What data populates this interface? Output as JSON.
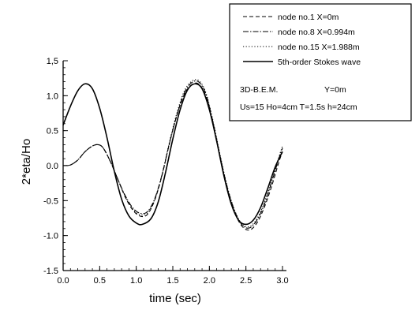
{
  "chart_data": {
    "type": "line",
    "xlabel": "time (sec)",
    "ylabel": "2*eta/Ho",
    "xlim": [
      0,
      3.0
    ],
    "ylim": [
      -1.5,
      1.5
    ],
    "x_ticks": [
      "0.0",
      "0.5",
      "1.0",
      "1.5",
      "2.0",
      "2.5",
      "3.0"
    ],
    "y_ticks": [
      "-1.5",
      "-1.0",
      "-0.5",
      "0.0",
      "0.5",
      "1.0",
      "1,5"
    ],
    "grid": false,
    "legend_position": "top-right",
    "series": [
      {
        "name": "node no.1  X=0m",
        "style": "dashed",
        "points": [
          [
            0,
            0
          ],
          [
            0.1,
            0.01
          ],
          [
            0.2,
            0.08
          ],
          [
            0.3,
            0.2
          ],
          [
            0.4,
            0.28
          ],
          [
            0.48,
            0.3
          ],
          [
            0.55,
            0.25
          ],
          [
            0.65,
            0.05
          ],
          [
            0.75,
            -0.2
          ],
          [
            0.85,
            -0.45
          ],
          [
            0.95,
            -0.63
          ],
          [
            1.05,
            -0.72
          ],
          [
            1.15,
            -0.7
          ],
          [
            1.25,
            -0.5
          ],
          [
            1.35,
            -0.15
          ],
          [
            1.45,
            0.3
          ],
          [
            1.55,
            0.7
          ],
          [
            1.65,
            1.0
          ],
          [
            1.75,
            1.15
          ],
          [
            1.85,
            1.17
          ],
          [
            1.95,
            1.0
          ],
          [
            2.05,
            0.6
          ],
          [
            2.15,
            0.1
          ],
          [
            2.25,
            -0.35
          ],
          [
            2.35,
            -0.68
          ],
          [
            2.45,
            -0.87
          ],
          [
            2.55,
            -0.92
          ],
          [
            2.65,
            -0.82
          ],
          [
            2.75,
            -0.6
          ],
          [
            2.85,
            -0.3
          ],
          [
            2.95,
            0.05
          ],
          [
            3.0,
            0.2
          ]
        ]
      },
      {
        "name": "node no.8  X=0.994m",
        "style": "dash-dot",
        "points": [
          [
            0,
            0
          ],
          [
            0.1,
            0.01
          ],
          [
            0.2,
            0.08
          ],
          [
            0.3,
            0.2
          ],
          [
            0.4,
            0.28
          ],
          [
            0.48,
            0.3
          ],
          [
            0.55,
            0.25
          ],
          [
            0.65,
            0.05
          ],
          [
            0.75,
            -0.2
          ],
          [
            0.85,
            -0.43
          ],
          [
            0.95,
            -0.6
          ],
          [
            1.05,
            -0.68
          ],
          [
            1.15,
            -0.66
          ],
          [
            1.25,
            -0.48
          ],
          [
            1.35,
            -0.14
          ],
          [
            1.45,
            0.3
          ],
          [
            1.55,
            0.7
          ],
          [
            1.65,
            1.02
          ],
          [
            1.75,
            1.18
          ],
          [
            1.85,
            1.2
          ],
          [
            1.95,
            1.03
          ],
          [
            2.05,
            0.62
          ],
          [
            2.15,
            0.12
          ],
          [
            2.25,
            -0.33
          ],
          [
            2.35,
            -0.66
          ],
          [
            2.45,
            -0.85
          ],
          [
            2.55,
            -0.89
          ],
          [
            2.65,
            -0.78
          ],
          [
            2.75,
            -0.56
          ],
          [
            2.85,
            -0.24
          ],
          [
            2.95,
            0.1
          ],
          [
            3.0,
            0.25
          ]
        ]
      },
      {
        "name": "node no.15  X=1.988m",
        "style": "dotted",
        "points": [
          [
            0,
            0
          ],
          [
            0.1,
            0.01
          ],
          [
            0.2,
            0.08
          ],
          [
            0.3,
            0.2
          ],
          [
            0.4,
            0.28
          ],
          [
            0.48,
            0.3
          ],
          [
            0.55,
            0.25
          ],
          [
            0.65,
            0.05
          ],
          [
            0.75,
            -0.2
          ],
          [
            0.85,
            -0.44
          ],
          [
            0.95,
            -0.62
          ],
          [
            1.05,
            -0.7
          ],
          [
            1.15,
            -0.68
          ],
          [
            1.25,
            -0.49
          ],
          [
            1.35,
            -0.14
          ],
          [
            1.45,
            0.32
          ],
          [
            1.55,
            0.73
          ],
          [
            1.65,
            1.05
          ],
          [
            1.75,
            1.2
          ],
          [
            1.85,
            1.22
          ],
          [
            1.95,
            1.05
          ],
          [
            2.05,
            0.64
          ],
          [
            2.15,
            0.14
          ],
          [
            2.25,
            -0.32
          ],
          [
            2.35,
            -0.65
          ],
          [
            2.45,
            -0.84
          ],
          [
            2.55,
            -0.87
          ],
          [
            2.65,
            -0.76
          ],
          [
            2.75,
            -0.53
          ],
          [
            2.85,
            -0.22
          ],
          [
            2.95,
            0.12
          ],
          [
            3.0,
            0.28
          ]
        ]
      },
      {
        "name": "5th-order Stokes wave",
        "style": "solid",
        "points": [
          [
            0,
            0.58
          ],
          [
            0.1,
            0.85
          ],
          [
            0.2,
            1.07
          ],
          [
            0.3,
            1.17
          ],
          [
            0.4,
            1.1
          ],
          [
            0.5,
            0.82
          ],
          [
            0.6,
            0.4
          ],
          [
            0.7,
            -0.08
          ],
          [
            0.8,
            -0.48
          ],
          [
            0.9,
            -0.72
          ],
          [
            1.0,
            -0.82
          ],
          [
            1.08,
            -0.84
          ],
          [
            1.2,
            -0.76
          ],
          [
            1.3,
            -0.52
          ],
          [
            1.4,
            -0.1
          ],
          [
            1.5,
            0.38
          ],
          [
            1.6,
            0.8
          ],
          [
            1.7,
            1.08
          ],
          [
            1.8,
            1.17
          ],
          [
            1.9,
            1.1
          ],
          [
            2.0,
            0.8
          ],
          [
            2.1,
            0.35
          ],
          [
            2.2,
            -0.15
          ],
          [
            2.3,
            -0.55
          ],
          [
            2.4,
            -0.78
          ],
          [
            2.5,
            -0.84
          ],
          [
            2.6,
            -0.78
          ],
          [
            2.7,
            -0.6
          ],
          [
            2.8,
            -0.32
          ],
          [
            2.9,
            -0.02
          ],
          [
            3.0,
            0.2
          ]
        ]
      }
    ],
    "legend_note_1a": "3D-B.E.M.",
    "legend_note_1b": "Y=0m",
    "legend_note_2": "Us=15 Ho=4cm T=1.5s h=24cm"
  }
}
